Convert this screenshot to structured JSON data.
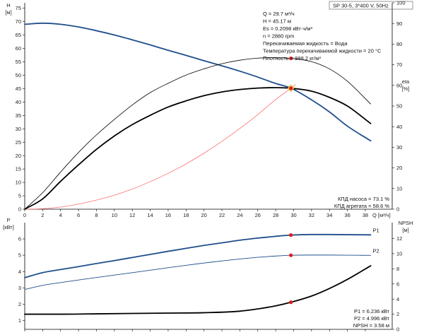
{
  "chart_data": [
    {
      "type": "line",
      "panel": "head-efficiency",
      "title": "SP 30-5, 3*400 V, 50Hz",
      "y_left_label": [
        "H",
        "[м]"
      ],
      "y_right_label": [
        "eta",
        "[%]"
      ],
      "x_label": "Q [м³/ч]",
      "x_ticks": [
        0,
        2,
        4,
        6,
        8,
        10,
        12,
        14,
        16,
        18,
        20,
        22,
        24,
        26,
        28,
        30,
        32,
        34,
        36,
        38
      ],
      "y_left_ticks": [
        0,
        5,
        10,
        15,
        20,
        25,
        30,
        35,
        40,
        45,
        50,
        55,
        60,
        65,
        70,
        75
      ],
      "y_right_ticks": [
        0,
        10,
        20,
        30,
        40,
        50,
        60,
        70,
        80,
        90,
        100
      ],
      "xlim": [
        0,
        41
      ],
      "ylim_left": [
        0,
        77
      ],
      "ylim_right": [
        0,
        100
      ],
      "info_lines": [
        "Q = 29.7 м³/ч",
        "H = 45.17 м",
        "Es = 0.2098 кВт·ч/м³",
        "n = 2880 rpm",
        "Перекачиваемая жидкость = Вода",
        "Температура перекачиваемой жидкости = 20 °C",
        "Плотность = 998.2 кг/м³"
      ],
      "efficiency_labels": [
        "КПД насоса = 73.1 %",
        "КПД агрегата = 58.6 %"
      ],
      "series": [
        {
          "axis": "left",
          "color": "#1f4e8c",
          "width": 1.8,
          "x": [
            0,
            2,
            4,
            6,
            8,
            10,
            12,
            14,
            16,
            18,
            20,
            22,
            24,
            26,
            28,
            29.7,
            32,
            34,
            36,
            38.6
          ],
          "y": [
            69,
            69.4,
            69,
            68,
            66.6,
            65,
            63.2,
            61.3,
            59.3,
            57.4,
            55.4,
            53.5,
            51.5,
            49.3,
            46.9,
            45.17,
            40.8,
            36.3,
            31,
            25.5
          ]
        },
        {
          "axis": "left",
          "color": "#ff6e6e",
          "width": 0.8,
          "x": [
            0,
            2,
            4,
            6,
            8,
            10,
            12,
            14,
            16,
            18,
            20,
            22,
            24,
            26,
            28,
            29.7,
            30.2
          ],
          "y": [
            0,
            0.2,
            0.8,
            1.9,
            3.4,
            5.2,
            7.5,
            10.3,
            13.4,
            16.9,
            20.9,
            25.3,
            30.1,
            35.3,
            40.9,
            45.17,
            46.5
          ]
        },
        {
          "axis": "right",
          "color": "#000000",
          "width": 0.8,
          "x": [
            0,
            2,
            4,
            6,
            8,
            10,
            12,
            14,
            16,
            18,
            20,
            22,
            24,
            26,
            28,
            29.7,
            32,
            34,
            36,
            38.6
          ],
          "y": [
            0,
            8,
            18,
            27.5,
            36,
            43.5,
            50.5,
            56.5,
            61,
            65,
            68,
            70.5,
            72.2,
            73.2,
            73.4,
            73.1,
            71.5,
            68,
            62,
            51
          ]
        },
        {
          "axis": "right",
          "color": "#000000",
          "width": 1.8,
          "x": [
            0,
            2,
            4,
            6,
            8,
            10,
            12,
            14,
            16,
            18,
            20,
            22,
            24,
            26,
            28,
            29.7,
            32,
            34,
            36,
            38.6
          ],
          "y": [
            0,
            5,
            13.5,
            21.5,
            29,
            35.5,
            41,
            45.5,
            49.5,
            52.5,
            55,
            56.8,
            58,
            58.7,
            58.9,
            58.6,
            57.2,
            54.2,
            50,
            41.5
          ]
        }
      ],
      "points": [
        {
          "axis": "left",
          "x": 29.7,
          "y": 45.17,
          "color": "#ffe36e",
          "shape": "diamond"
        },
        {
          "axis": "right",
          "x": 29.7,
          "y": 73.1,
          "color": "#e21b1b",
          "shape": "dot"
        },
        {
          "axis": "right",
          "x": 29.7,
          "y": 58.6,
          "color": "#e21b1b",
          "shape": "dot"
        }
      ]
    },
    {
      "type": "line",
      "panel": "power-npsh",
      "y_left_label": [
        "P",
        "[кВт]"
      ],
      "y_right_label": [
        "NPSH",
        "[м]"
      ],
      "x_ticks": [
        0,
        2,
        4,
        6,
        8,
        10,
        12,
        14,
        16,
        18,
        20,
        22,
        24,
        26,
        28,
        30,
        32,
        34,
        36,
        38
      ],
      "y_left_ticks": [
        1,
        2,
        3,
        4,
        5,
        6
      ],
      "y_right_ticks": [
        0,
        2,
        4,
        6,
        8,
        10,
        12
      ],
      "xlim": [
        0,
        41
      ],
      "ylim_left": [
        0.45,
        7
      ],
      "ylim_right": [
        0,
        14.1
      ],
      "readout_labels": [
        "P1 = 6.236 кВт",
        "P2 = 4.996 кВт",
        "NPSH = 3.58 м"
      ],
      "series": [
        {
          "name": "P1",
          "axis": "left",
          "color": "#1f4e8c",
          "width": 1.8,
          "x": [
            0,
            2,
            4,
            6,
            8,
            10,
            12,
            14,
            16,
            18,
            20,
            22,
            24,
            26,
            28,
            29.7,
            32,
            34,
            36,
            38.6
          ],
          "y": [
            3.62,
            3.93,
            4.12,
            4.3,
            4.49,
            4.67,
            4.86,
            5.05,
            5.24,
            5.42,
            5.6,
            5.76,
            5.92,
            6.05,
            6.16,
            6.236,
            6.27,
            6.27,
            6.26,
            6.25
          ]
        },
        {
          "name": "P2",
          "axis": "left",
          "color": "#1f4e8c",
          "width": 0.9,
          "x": [
            0,
            2,
            4,
            6,
            8,
            10,
            12,
            14,
            16,
            18,
            20,
            22,
            24,
            26,
            28,
            29.7,
            32,
            34,
            36,
            38.6
          ],
          "y": [
            2.9,
            3.15,
            3.32,
            3.48,
            3.63,
            3.78,
            3.93,
            4.08,
            4.23,
            4.38,
            4.52,
            4.65,
            4.77,
            4.87,
            4.95,
            4.996,
            5.01,
            5.01,
            5.0,
            4.99
          ]
        },
        {
          "axis": "right",
          "color": "#000000",
          "width": 1.8,
          "x": [
            0,
            4,
            8,
            12,
            16,
            20,
            24,
            26,
            28,
            29.7,
            32,
            34,
            36,
            38.6
          ],
          "y": [
            2.0,
            2.0,
            2.05,
            2.1,
            2.15,
            2.2,
            2.4,
            2.7,
            3.1,
            3.58,
            4.4,
            5.4,
            6.6,
            8.4
          ]
        }
      ],
      "points": [
        {
          "axis": "left",
          "x": 29.7,
          "y": 6.236,
          "color": "#e21b1b",
          "shape": "dot"
        },
        {
          "axis": "left",
          "x": 29.7,
          "y": 4.996,
          "color": "#e21b1b",
          "shape": "dot"
        },
        {
          "axis": "right",
          "x": 29.7,
          "y": 3.58,
          "color": "#e21b1b",
          "shape": "dot"
        }
      ]
    }
  ]
}
